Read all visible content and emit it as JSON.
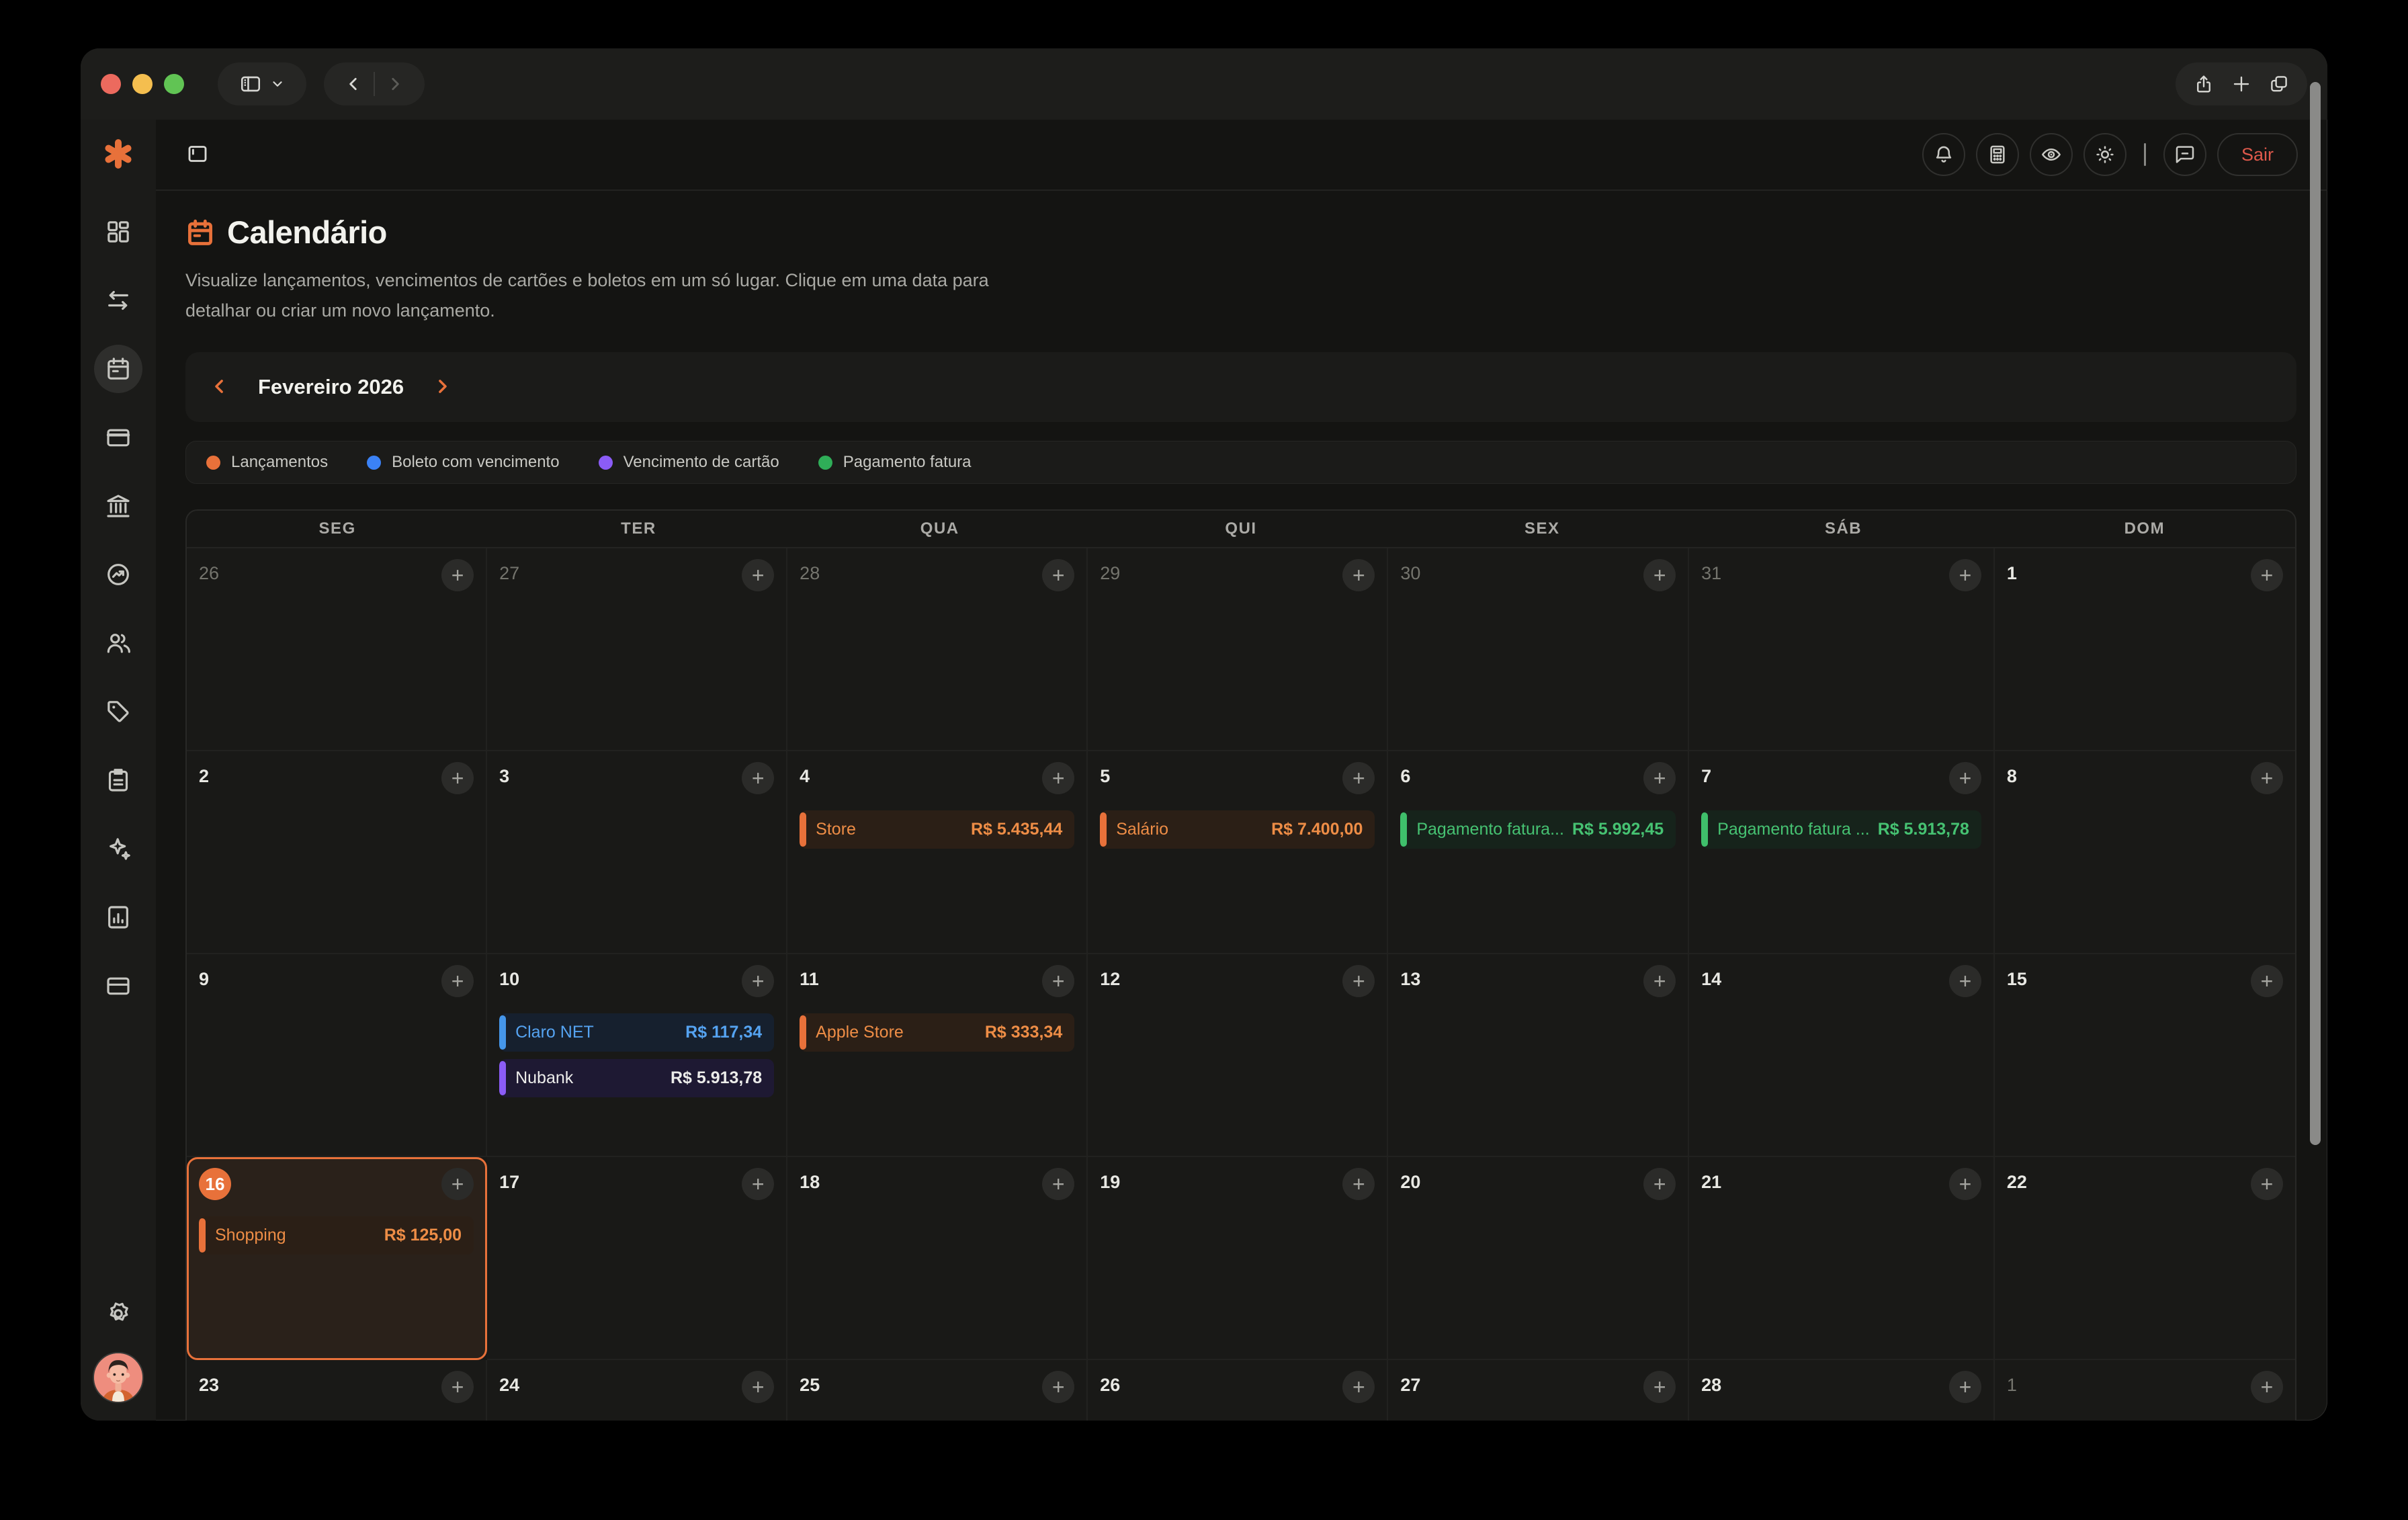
{
  "browser": {
    "toolbar_icons": [
      "sidebar-toggle",
      "chevron-down",
      "back",
      "forward",
      "share",
      "new-tab",
      "tabs-overview"
    ]
  },
  "topbar": {
    "left_icon": "panel-toggle",
    "buttons": [
      "bell",
      "calculator",
      "eye",
      "sun"
    ],
    "buttons_after_divider": [
      "chat"
    ],
    "logout_label": "Sair"
  },
  "sidebar": {
    "logo_icon": "asterisk-logo",
    "items": [
      {
        "name": "dashboard"
      },
      {
        "name": "transfers"
      },
      {
        "name": "calendar",
        "active": true
      },
      {
        "name": "card"
      },
      {
        "name": "bank"
      },
      {
        "name": "performance"
      },
      {
        "name": "users"
      },
      {
        "name": "tag"
      },
      {
        "name": "clipboard"
      },
      {
        "name": "sparkles"
      },
      {
        "name": "report"
      },
      {
        "name": "wallet"
      }
    ],
    "bottom": [
      "settings",
      "avatar"
    ]
  },
  "page": {
    "title": "Calendário",
    "title_icon": "calendar-icon",
    "description": "Visualize lançamentos, vencimentos de cartões e boletos em um só lugar. Clique em uma data para detalhar ou criar um novo lançamento.",
    "month": "Fevereiro 2026",
    "legend": [
      {
        "label": "Lançamentos",
        "color": "#e8713a"
      },
      {
        "label": "Boleto com vencimento",
        "color": "#3b82f6"
      },
      {
        "label": "Vencimento de cartão",
        "color": "#8b5cf6"
      },
      {
        "label": "Pagamento fatura",
        "color": "#2fae58"
      }
    ]
  },
  "calendar": {
    "day_headers": [
      "SEG",
      "TER",
      "QUA",
      "QUI",
      "SEX",
      "SÁB",
      "DOM"
    ],
    "add_button_glyph": "+",
    "weeks": [
      [
        {
          "day": "26",
          "muted": true
        },
        {
          "day": "27",
          "muted": true
        },
        {
          "day": "28",
          "muted": true
        },
        {
          "day": "29",
          "muted": true
        },
        {
          "day": "30",
          "muted": true
        },
        {
          "day": "31",
          "muted": true
        },
        {
          "day": "1"
        }
      ],
      [
        {
          "day": "2"
        },
        {
          "day": "3"
        },
        {
          "day": "4",
          "events": [
            {
              "name": "Store",
              "value": "R$ 5.435,44",
              "type": "orange"
            }
          ]
        },
        {
          "day": "5",
          "events": [
            {
              "name": "Salário",
              "value": "R$ 7.400,00",
              "type": "orange"
            }
          ]
        },
        {
          "day": "6",
          "events": [
            {
              "name": "Pagamento fatura...",
              "value": "R$ 5.992,45",
              "type": "green"
            }
          ]
        },
        {
          "day": "7",
          "events": [
            {
              "name": "Pagamento fatura ...",
              "value": "R$ 5.913,78",
              "type": "green"
            }
          ]
        },
        {
          "day": "8"
        }
      ],
      [
        {
          "day": "9"
        },
        {
          "day": "10",
          "events": [
            {
              "name": "Claro NET",
              "value": "R$ 117,34",
              "type": "blue"
            },
            {
              "name": "Nubank",
              "value": "R$ 5.913,78",
              "type": "purple"
            }
          ]
        },
        {
          "day": "11",
          "events": [
            {
              "name": "Apple Store",
              "value": "R$ 333,34",
              "type": "orange"
            }
          ]
        },
        {
          "day": "12"
        },
        {
          "day": "13"
        },
        {
          "day": "14"
        },
        {
          "day": "15"
        }
      ],
      [
        {
          "day": "16",
          "today": true,
          "events": [
            {
              "name": "Shopping",
              "value": "R$ 125,00",
              "type": "orange"
            }
          ]
        },
        {
          "day": "17"
        },
        {
          "day": "18"
        },
        {
          "day": "19"
        },
        {
          "day": "20"
        },
        {
          "day": "21"
        },
        {
          "day": "22"
        }
      ],
      [
        {
          "day": "23"
        },
        {
          "day": "24"
        },
        {
          "day": "25"
        },
        {
          "day": "26"
        },
        {
          "day": "27"
        },
        {
          "day": "28"
        },
        {
          "day": "1",
          "muted": true
        }
      ]
    ]
  },
  "colors": {
    "accent": "#e8713a",
    "logout": "#de594b",
    "event_types": {
      "orange": {
        "bar": "#e8713a",
        "bg": "#2b1f16",
        "text": "#ee8d46"
      },
      "green": {
        "bar": "#3fbf6b",
        "bg": "#16231b",
        "text": "#46c272"
      },
      "blue": {
        "bar": "#4596ea",
        "bg": "#16202e",
        "text": "#55a3f1"
      },
      "purple": {
        "bar": "#8b5cf6",
        "bg": "#1e1933",
        "text": "#ececea"
      }
    }
  }
}
